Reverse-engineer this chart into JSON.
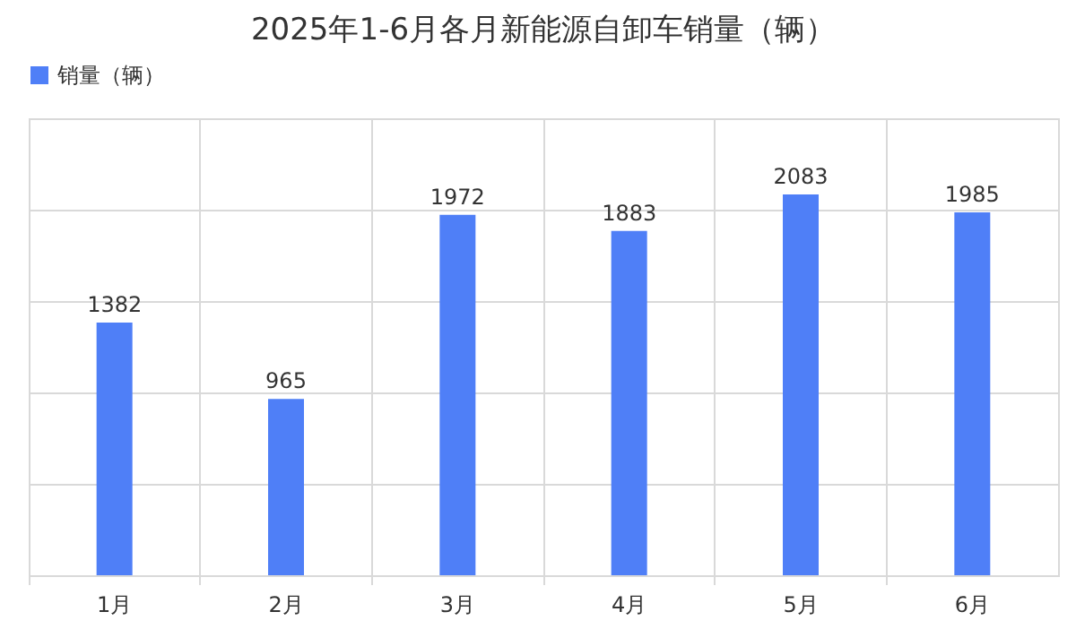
{
  "chart_data": {
    "type": "bar",
    "title": "2025年1-6月各月新能源自卸车销量（辆）",
    "categories": [
      "1月",
      "2月",
      "3月",
      "4月",
      "5月",
      "6月"
    ],
    "series": [
      {
        "name": "销量（辆）",
        "color": "#4f7ff7",
        "values": [
          1382,
          965,
          1972,
          1883,
          2083,
          1985
        ]
      }
    ],
    "ylim": [
      0,
      2500
    ],
    "yticks": [
      {
        "value": 0,
        "label": null
      },
      {
        "value": 500,
        "label": null
      },
      {
        "value": 1000,
        "label": null
      },
      {
        "value": 1500,
        "label": null
      },
      {
        "value": 2000,
        "label": null
      },
      {
        "value": 2500,
        "label": null
      }
    ],
    "tick_labels": "x",
    "grid": true,
    "legend": "top",
    "data_labels": true
  }
}
